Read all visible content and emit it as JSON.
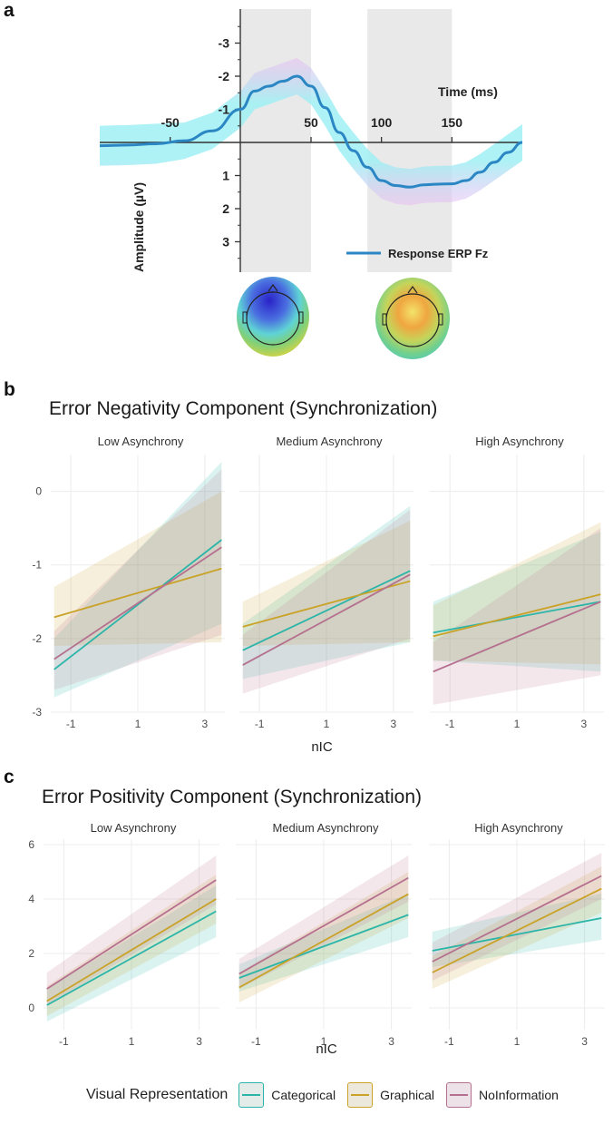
{
  "panel_a": {
    "letter": "a",
    "legend_label": "Response ERP Fz",
    "time_axis_label": "Time (ms)",
    "amplitude_axis_label": "Amplitude (µV)"
  },
  "panel_b": {
    "letter": "b",
    "title": "Error Negativity Component (Synchronization)",
    "xlabel": "nIC"
  },
  "panel_c": {
    "letter": "c",
    "title": "Error Positivity Component (Synchronization)",
    "xlabel": "nIC"
  },
  "legend": {
    "title": "Visual Representation",
    "items": [
      {
        "label": "Categorical",
        "color": "#2bb5a8"
      },
      {
        "label": "Graphical",
        "color": "#c9a227"
      },
      {
        "label": "NoInformation",
        "color": "#b5708f"
      }
    ]
  },
  "chart_data": [
    {
      "type": "line",
      "title": "",
      "xlabel": "Time (ms)",
      "ylabel": "Amplitude (µV)",
      "series_name": "Response ERP Fz",
      "x_ticks": [
        "-50",
        "50",
        "100",
        "150"
      ],
      "y_ticks": [
        "-3",
        "-2",
        "-1",
        "1",
        "2",
        "3"
      ],
      "y_inverted": true,
      "xlim": [
        -100,
        200
      ],
      "ylim": [
        -4,
        4
      ],
      "x": [
        -100,
        -80,
        -60,
        -40,
        -20,
        0,
        10,
        20,
        30,
        40,
        50,
        60,
        70,
        80,
        90,
        100,
        110,
        120,
        130,
        140,
        150,
        160,
        170,
        180,
        190,
        200
      ],
      "y": [
        0.1,
        0.08,
        0.04,
        -0.05,
        -0.35,
        -1.0,
        -1.55,
        -1.7,
        -1.85,
        -2.0,
        -1.7,
        -1.05,
        -0.3,
        0.25,
        0.75,
        1.15,
        1.3,
        1.35,
        1.28,
        1.26,
        1.25,
        1.15,
        0.9,
        0.6,
        0.3,
        0.0
      ],
      "ci_halfwidth": 0.55,
      "shaded_windows_ms": [
        [
          0,
          50
        ],
        [
          90,
          150
        ]
      ]
    },
    {
      "type": "line",
      "title": "Error Negativity Component (Synchronization)",
      "xlabel": "nIC",
      "ylabel": "",
      "facets": [
        "Low Asynchrony",
        "Medium Asynchrony",
        "High Asynchrony"
      ],
      "x_ticks": [
        -1,
        1,
        3
      ],
      "y_ticks": [
        0,
        -1,
        -2,
        -3
      ],
      "xlim": [
        -1.6,
        3.6
      ],
      "ylim": [
        -3.0,
        0.5
      ],
      "series_names": [
        "Categorical",
        "Graphical",
        "NoInformation"
      ],
      "series": [
        {
          "facet": "Low Asynchrony",
          "name": "Categorical",
          "x": [
            -1.5,
            3.5
          ],
          "y": [
            -2.42,
            -0.66
          ],
          "lower": [
            -2.8,
            -1.8
          ],
          "upper": [
            -2.0,
            0.4
          ]
        },
        {
          "facet": "Low Asynchrony",
          "name": "Graphical",
          "x": [
            -1.5,
            3.5
          ],
          "y": [
            -1.71,
            -1.05
          ],
          "lower": [
            -2.1,
            -2.05
          ],
          "upper": [
            -1.3,
            0.0
          ]
        },
        {
          "facet": "Low Asynchrony",
          "name": "NoInformation",
          "x": [
            -1.5,
            3.5
          ],
          "y": [
            -2.28,
            -0.76
          ],
          "lower": [
            -2.7,
            -1.95
          ],
          "upper": [
            -1.9,
            0.3
          ]
        },
        {
          "facet": "Medium Asynchrony",
          "name": "Categorical",
          "x": [
            -1.5,
            3.5
          ],
          "y": [
            -2.16,
            -1.08
          ],
          "lower": [
            -2.55,
            -2.05
          ],
          "upper": [
            -1.8,
            -0.2
          ]
        },
        {
          "facet": "Medium Asynchrony",
          "name": "Graphical",
          "x": [
            -1.5,
            3.5
          ],
          "y": [
            -1.84,
            -1.22
          ],
          "lower": [
            -2.1,
            -2.05
          ],
          "upper": [
            -1.5,
            -0.4
          ]
        },
        {
          "facet": "Medium Asynchrony",
          "name": "NoInformation",
          "x": [
            -1.5,
            3.5
          ],
          "y": [
            -2.36,
            -1.13
          ],
          "lower": [
            -2.75,
            -2.0
          ],
          "upper": [
            -1.95,
            -0.25
          ]
        },
        {
          "facet": "High Asynchrony",
          "name": "Categorical",
          "x": [
            -1.5,
            3.5
          ],
          "y": [
            -1.92,
            -1.5
          ],
          "lower": [
            -2.3,
            -2.45
          ],
          "upper": [
            -1.5,
            -0.55
          ]
        },
        {
          "facet": "High Asynchrony",
          "name": "Graphical",
          "x": [
            -1.5,
            3.5
          ],
          "y": [
            -1.97,
            -1.4
          ],
          "lower": [
            -2.3,
            -2.35
          ],
          "upper": [
            -1.55,
            -0.42
          ]
        },
        {
          "facet": "High Asynchrony",
          "name": "NoInformation",
          "x": [
            -1.5,
            3.5
          ],
          "y": [
            -2.45,
            -1.5
          ],
          "lower": [
            -2.9,
            -2.5
          ],
          "upper": [
            -2.05,
            -0.5
          ]
        }
      ]
    },
    {
      "type": "line",
      "title": "Error Positivity Component (Synchronization)",
      "xlabel": "nIC",
      "ylabel": "",
      "facets": [
        "Low Asynchrony",
        "Medium Asynchrony",
        "High Asynchrony"
      ],
      "x_ticks": [
        -1,
        1,
        3
      ],
      "y_ticks": [
        0,
        2,
        4,
        6
      ],
      "xlim": [
        -1.6,
        3.6
      ],
      "ylim": [
        -0.8,
        6.2
      ],
      "series_names": [
        "Categorical",
        "Graphical",
        "NoInformation"
      ],
      "series": [
        {
          "facet": "Low Asynchrony",
          "name": "Categorical",
          "x": [
            -1.5,
            3.5
          ],
          "y": [
            0.1,
            3.55
          ],
          "lower": [
            -0.5,
            2.6
          ],
          "upper": [
            0.7,
            4.5
          ]
        },
        {
          "facet": "Low Asynchrony",
          "name": "Graphical",
          "x": [
            -1.5,
            3.5
          ],
          "y": [
            0.25,
            4.0
          ],
          "lower": [
            -0.3,
            3.1
          ],
          "upper": [
            0.8,
            4.9
          ]
        },
        {
          "facet": "Low Asynchrony",
          "name": "NoInformation",
          "x": [
            -1.5,
            3.5
          ],
          "y": [
            0.7,
            4.7
          ],
          "lower": [
            0.1,
            3.8
          ],
          "upper": [
            1.3,
            5.6
          ]
        },
        {
          "facet": "Medium Asynchrony",
          "name": "Categorical",
          "x": [
            -1.5,
            3.5
          ],
          "y": [
            1.1,
            3.42
          ],
          "lower": [
            0.6,
            2.6
          ],
          "upper": [
            1.6,
            4.2
          ]
        },
        {
          "facet": "Medium Asynchrony",
          "name": "Graphical",
          "x": [
            -1.5,
            3.5
          ],
          "y": [
            0.75,
            4.18
          ],
          "lower": [
            0.2,
            3.3
          ],
          "upper": [
            1.3,
            5.0
          ]
        },
        {
          "facet": "Medium Asynchrony",
          "name": "NoInformation",
          "x": [
            -1.5,
            3.5
          ],
          "y": [
            1.25,
            4.78
          ],
          "lower": [
            0.7,
            3.9
          ],
          "upper": [
            1.8,
            5.6
          ]
        },
        {
          "facet": "High Asynchrony",
          "name": "Categorical",
          "x": [
            -1.5,
            3.5
          ],
          "y": [
            2.1,
            3.3
          ],
          "lower": [
            1.5,
            2.5
          ],
          "upper": [
            2.8,
            4.2
          ]
        },
        {
          "facet": "High Asynchrony",
          "name": "Graphical",
          "x": [
            -1.5,
            3.5
          ],
          "y": [
            1.3,
            4.38
          ],
          "lower": [
            0.7,
            3.5
          ],
          "upper": [
            1.9,
            5.2
          ]
        },
        {
          "facet": "High Asynchrony",
          "name": "NoInformation",
          "x": [
            -1.5,
            3.5
          ],
          "y": [
            1.7,
            4.85
          ],
          "lower": [
            1.0,
            4.0
          ],
          "upper": [
            2.4,
            5.7
          ]
        }
      ]
    }
  ]
}
